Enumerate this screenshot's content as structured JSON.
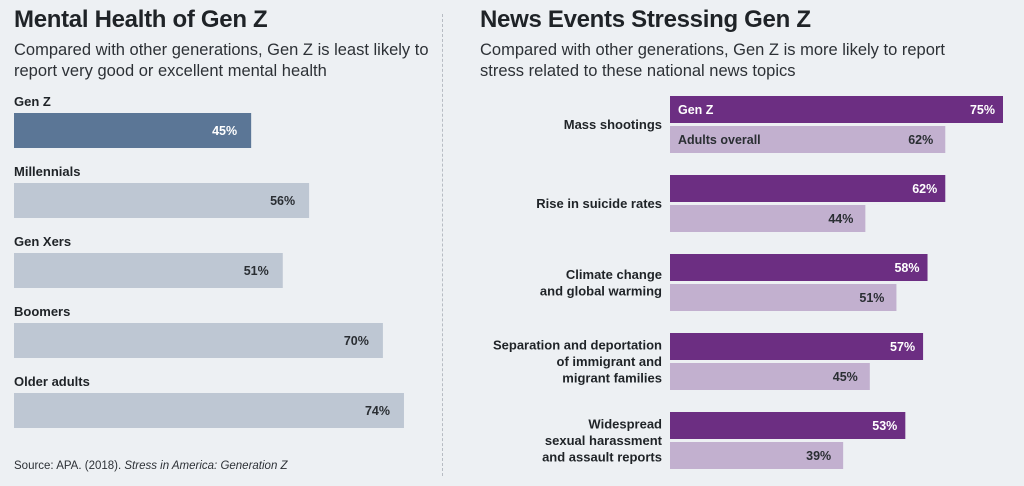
{
  "colors": {
    "background": "#edf0f3",
    "left_highlight": "#5b7696",
    "left_bar": "#bec7d3",
    "genz_purple": "#6c2e82",
    "adults_lavender": "#c2b0cf"
  },
  "left": {
    "title": "Mental Health of Gen Z",
    "subtitle": "Compared with other generations, Gen Z is least likely to report very good or excellent mental health"
  },
  "right": {
    "title": "News Events Stressing Gen Z",
    "subtitle": "Compared with other generations, Gen Z is more likely to report stress related to these national news topics"
  },
  "source": {
    "prefix": "Source: APA. (2018). ",
    "work": "Stress in America: Generation Z"
  },
  "chart_data": [
    {
      "type": "bar",
      "orientation": "horizontal",
      "title": "Mental Health of Gen Z",
      "categories": [
        "Gen Z",
        "Millennials",
        "Gen Xers",
        "Boomers",
        "Older adults"
      ],
      "values": [
        45,
        56,
        51,
        70,
        74
      ],
      "value_labels": [
        "45%",
        "56%",
        "51%",
        "70%",
        "74%"
      ],
      "highlight": "Gen Z",
      "unit": "%"
    },
    {
      "type": "bar",
      "orientation": "horizontal",
      "title": "News Events Stressing Gen Z",
      "categories": [
        "Mass shootings",
        "Rise in suicide rates",
        "Climate change\nand global warming",
        "Separation and deportation\nof immigrant and\nmigrant families",
        "Widespread\nsexual harassment\nand assault reports"
      ],
      "series": [
        {
          "name": "Gen Z",
          "values": [
            75,
            62,
            58,
            57,
            53
          ],
          "value_labels": [
            "75%",
            "62%",
            "58%",
            "57%",
            "53%"
          ]
        },
        {
          "name": "Adults overall",
          "values": [
            62,
            44,
            51,
            45,
            39
          ],
          "value_labels": [
            "62%",
            "44%",
            "51%",
            "45%",
            "39%"
          ]
        }
      ],
      "unit": "%"
    }
  ]
}
